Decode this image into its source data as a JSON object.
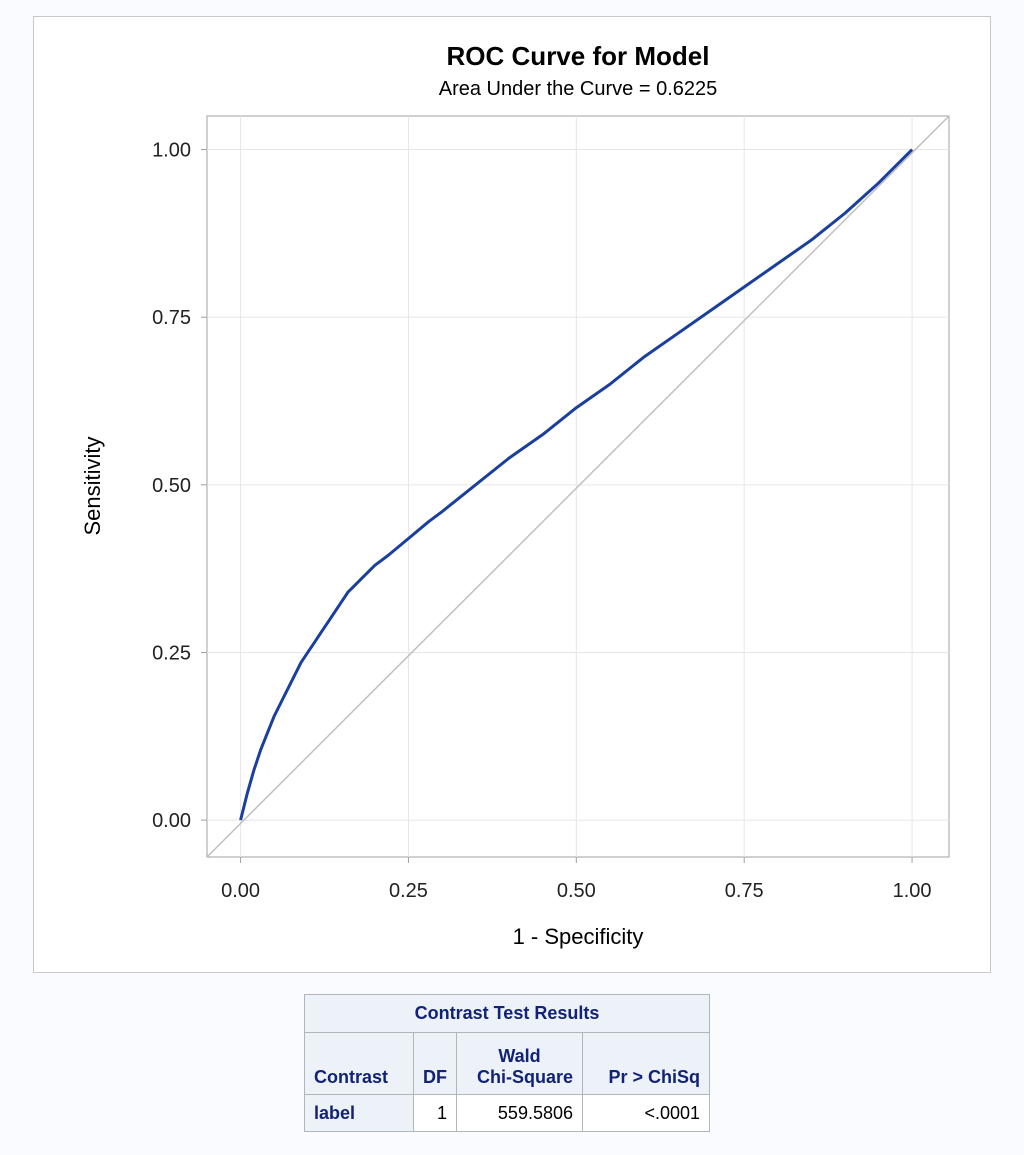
{
  "chart_data": {
    "type": "line",
    "title": "ROC Curve for Model",
    "subtitle": "Area Under the Curve = 0.6225",
    "xlabel": "1 - Specificity",
    "ylabel": "Sensitivity",
    "xlim": [
      -0.05,
      1.055
    ],
    "ylim": [
      -0.055,
      1.05
    ],
    "xticks": [
      "0.00",
      "0.25",
      "0.50",
      "0.75",
      "1.00"
    ],
    "yticks": [
      "0.00",
      "0.25",
      "0.50",
      "0.75",
      "1.00"
    ],
    "grid": true,
    "series": [
      {
        "color": "#1a3f9c",
        "x": [
          0.0,
          0.01,
          0.02,
          0.03,
          0.04,
          0.05,
          0.06,
          0.07,
          0.08,
          0.09,
          0.1,
          0.11,
          0.12,
          0.13,
          0.14,
          0.15,
          0.16,
          0.17,
          0.18,
          0.2,
          0.22,
          0.25,
          0.28,
          0.3,
          0.35,
          0.4,
          0.45,
          0.5,
          0.55,
          0.6,
          0.65,
          0.7,
          0.75,
          0.8,
          0.85,
          0.9,
          0.95,
          1.0
        ],
        "y": [
          0.0,
          0.04,
          0.075,
          0.105,
          0.13,
          0.155,
          0.175,
          0.195,
          0.215,
          0.235,
          0.25,
          0.265,
          0.28,
          0.295,
          0.31,
          0.325,
          0.34,
          0.35,
          0.36,
          0.38,
          0.395,
          0.42,
          0.445,
          0.46,
          0.5,
          0.54,
          0.575,
          0.615,
          0.65,
          0.69,
          0.725,
          0.76,
          0.795,
          0.83,
          0.865,
          0.905,
          0.95,
          1.0
        ]
      },
      {
        "color": "#c0c0c0",
        "x": [
          -0.05,
          1.055
        ],
        "y": [
          -0.055,
          1.05
        ]
      }
    ]
  },
  "table": {
    "caption": "Contrast Test Results",
    "headers": [
      "Contrast",
      "DF",
      "Wald\nChi-Square",
      "Pr > ChiSq"
    ],
    "header_wald_line1": "Wald",
    "header_wald_line2": "Chi-Square",
    "rows": [
      {
        "contrast": "label",
        "df": "1",
        "wald_chisq": "559.5806",
        "p": "<.0001"
      }
    ]
  }
}
